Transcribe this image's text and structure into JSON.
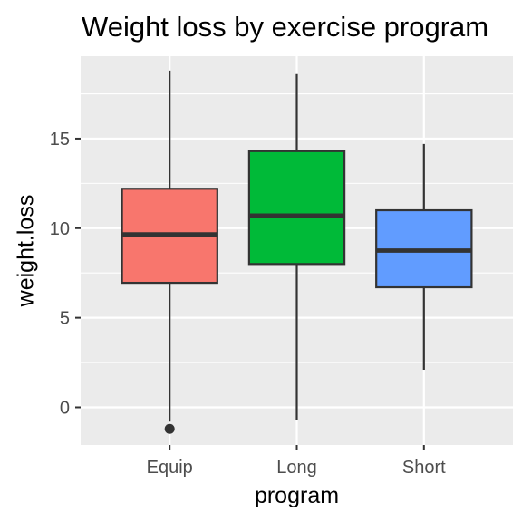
{
  "chart_data": {
    "type": "box",
    "title": "Weight loss by exercise program",
    "xlabel": "program",
    "ylabel": "weight.loss",
    "categories": [
      "Equip",
      "Long",
      "Short"
    ],
    "y_ticks": [
      0,
      5,
      10,
      15
    ],
    "y_tick_labels": [
      "0",
      "5",
      "10",
      "15"
    ],
    "ylim": [
      -2.1,
      19.6
    ],
    "grid": true,
    "legend": "none",
    "boxes": [
      {
        "category": "Equip",
        "min": -0.8,
        "q1": 6.95,
        "median": 9.65,
        "q3": 12.2,
        "max": 18.8,
        "outliers": [
          -1.2
        ],
        "fill": "#F8766D"
      },
      {
        "category": "Long",
        "min": -0.7,
        "q1": 8.0,
        "median": 10.7,
        "q3": 14.3,
        "max": 18.6,
        "outliers": [],
        "fill": "#00BA38"
      },
      {
        "category": "Short",
        "min": 2.1,
        "q1": 6.7,
        "median": 8.75,
        "q3": 11.0,
        "max": 14.7,
        "outliers": [],
        "fill": "#619CFF"
      }
    ]
  },
  "colors": {
    "panel_background": "#EBEBEB",
    "grid_major": "#FFFFFF",
    "outline": "#333333"
  }
}
